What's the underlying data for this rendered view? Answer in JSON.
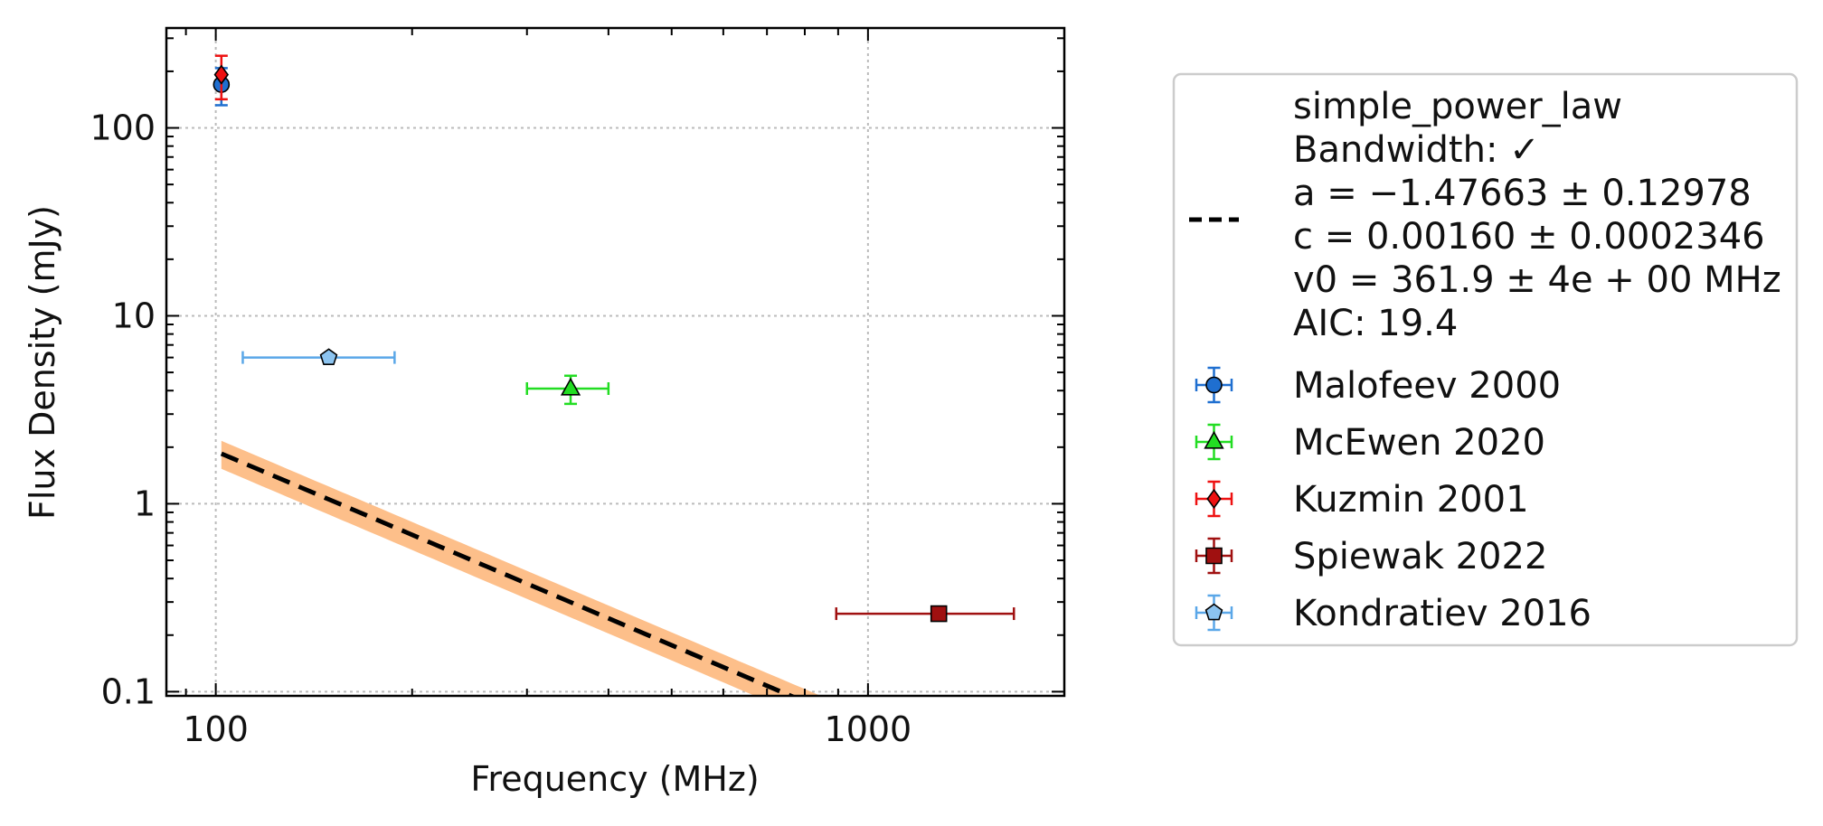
{
  "chart_data": {
    "type": "scatter",
    "xlabel": "Frequency (MHz)",
    "ylabel": "Flux Density (mJy)",
    "xscale": "log",
    "yscale": "log",
    "xlim": [
      84,
      2000
    ],
    "ylim": [
      0.095,
      340
    ],
    "grid": true,
    "legend_placement": "outside-right",
    "x_ticks": [
      {
        "value": 100,
        "label": "100"
      },
      {
        "value": 1000,
        "label": "1000"
      }
    ],
    "y_ticks": [
      {
        "value": 0.1,
        "label": "0.1"
      },
      {
        "value": 1,
        "label": "1"
      },
      {
        "value": 10,
        "label": "10"
      },
      {
        "value": 100,
        "label": "100"
      }
    ],
    "fit": {
      "name": "simple_power_law",
      "legend_lines": [
        "simple_power_law",
        "Bandwidth: ✓",
        "a = −1.47663 ± 0.12978",
        "c = 0.00160 ± 0.0002346",
        "v0 = 361.9 ± 4e + 00 MHz",
        "AIC: 19.4"
      ],
      "a": -1.47663,
      "a_err": 0.12978,
      "c": 0.0016,
      "c_err": 0.0002346,
      "v0": 361.9,
      "x_range": [
        102,
        1700
      ],
      "line_color": "#000000",
      "band_color": "#fdbf8a"
    },
    "series": [
      {
        "name": "Malofeev 2000",
        "marker": "circle",
        "color": "#1f6fd0",
        "ecolor": "#1f6fd0",
        "points": [
          {
            "x": 102,
            "y": 170,
            "xerr": [
              0,
              0
            ],
            "yerr": [
              38,
              38
            ]
          }
        ]
      },
      {
        "name": "McEwen 2020",
        "marker": "triangle",
        "color": "#22dd22",
        "ecolor": "#22dd22",
        "points": [
          {
            "x": 350,
            "y": 4.1,
            "xerr": [
              50,
              50
            ],
            "yerr": [
              0.7,
              0.7
            ]
          }
        ]
      },
      {
        "name": "Kuzmin 2001",
        "marker": "diamond",
        "color": "#ee1111",
        "ecolor": "#ee1111",
        "points": [
          {
            "x": 102,
            "y": 192,
            "xerr": [
              0,
              0
            ],
            "yerr": [
              50,
              50
            ]
          }
        ]
      },
      {
        "name": "Spiewak 2022",
        "marker": "square",
        "color": "#a01010",
        "ecolor": "#a01010",
        "points": [
          {
            "x": 1284,
            "y": 0.26,
            "xerr": [
              390,
              390
            ],
            "yerr": [
              0,
              0
            ]
          }
        ]
      },
      {
        "name": "Kondratiev 2016",
        "marker": "pentagon",
        "color": "#8cc4f0",
        "ecolor": "#5aa7e8",
        "points": [
          {
            "x": 149,
            "y": 6.0,
            "xerr": [
              39,
              39
            ],
            "yerr": [
              0,
              0
            ]
          }
        ]
      }
    ]
  }
}
